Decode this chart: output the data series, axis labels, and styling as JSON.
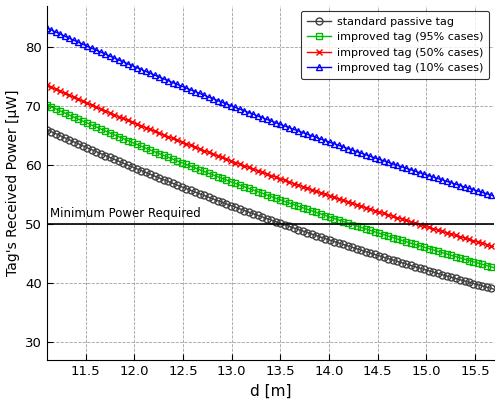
{
  "title": "",
  "xlabel": "d [m]",
  "ylabel": "Tag's Received Power [μW]",
  "xlim": [
    11.1,
    15.7
  ],
  "ylim": [
    27,
    87
  ],
  "xticks": [
    11.5,
    12.0,
    12.5,
    13.0,
    13.5,
    14.0,
    14.5,
    15.0,
    15.5
  ],
  "yticks": [
    30,
    40,
    50,
    60,
    70,
    80
  ],
  "min_power": 50.0,
  "min_power_label": "Minimum Power Required",
  "series": [
    {
      "label": "standard passive tag",
      "color": "#404040",
      "marker": "o",
      "marker_facecolor": "none",
      "marker_edgecolor": "#404040",
      "A": 66.0,
      "decay": 0.1145,
      "x0": 11.1
    },
    {
      "label": "improved tag (95% cases)",
      "color": "#00bb00",
      "marker": "s",
      "marker_facecolor": "none",
      "marker_edgecolor": "#00bb00",
      "A": 70.2,
      "decay": 0.1085,
      "x0": 11.1
    },
    {
      "label": "improved tag (50% cases)",
      "color": "#ff0000",
      "marker": "x",
      "marker_facecolor": "#ff0000",
      "marker_edgecolor": "#ff0000",
      "A": 73.5,
      "decay": 0.101,
      "x0": 11.1
    },
    {
      "label": "improved tag (10% cases)",
      "color": "#0000ff",
      "marker": "^",
      "marker_facecolor": "none",
      "marker_edgecolor": "#0000ff",
      "A": 83.2,
      "decay": 0.091,
      "x0": 11.1
    }
  ],
  "marker_every": 3,
  "background_color": "#ffffff",
  "grid_color": "#888888",
  "legend_loc": "upper right"
}
